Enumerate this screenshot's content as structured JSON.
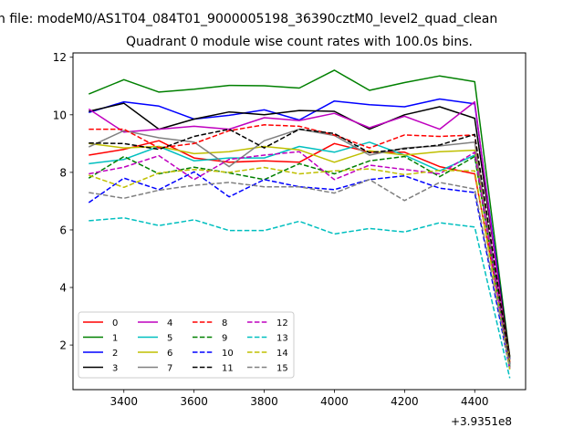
{
  "chart_data": {
    "type": "line",
    "suptitle": "n file: modeM0/AS1T04_084T01_9000005198_36390cztM0_level2_quad_clean",
    "title": "Quadrant 0 module wise count rates with 100.0s bins.",
    "xlabel": "",
    "ylabel": "",
    "x_offset_label": "+3.9351e8",
    "x": [
      3300,
      3400,
      3500,
      3600,
      3700,
      3800,
      3900,
      4000,
      4100,
      4200,
      4300,
      4400,
      4500
    ],
    "xlim": [
      3255,
      4545
    ],
    "ylim": [
      0.45,
      12.15
    ],
    "xticks": [
      3400,
      3600,
      3800,
      4000,
      4200,
      4400
    ],
    "yticks": [
      2,
      4,
      6,
      8,
      10,
      12
    ],
    "grid": false,
    "legend": {
      "placement": "lower-left",
      "columns": 4
    },
    "series": [
      {
        "name": "0",
        "color": "#ff0000",
        "dash": "solid",
        "values": [
          8.6,
          8.8,
          9.1,
          8.5,
          8.35,
          8.4,
          8.35,
          9.0,
          8.7,
          8.7,
          8.2,
          7.95,
          1.5
        ]
      },
      {
        "name": "1",
        "color": "#008000",
        "dash": "solid",
        "values": [
          10.72,
          11.22,
          10.79,
          10.89,
          11.02,
          11.01,
          10.93,
          11.55,
          10.85,
          11.12,
          11.35,
          11.15,
          1.55
        ]
      },
      {
        "name": "2",
        "color": "#0000ff",
        "dash": "solid",
        "values": [
          10.08,
          10.45,
          10.3,
          9.85,
          9.98,
          10.17,
          9.82,
          10.48,
          10.35,
          10.28,
          10.55,
          10.38,
          1.5
        ]
      },
      {
        "name": "3",
        "color": "#000000",
        "dash": "solid",
        "values": [
          10.12,
          10.4,
          9.5,
          9.85,
          10.1,
          10.0,
          10.15,
          10.12,
          9.5,
          10.0,
          10.28,
          9.88,
          1.6
        ]
      },
      {
        "name": "4",
        "color": "#bf00bf",
        "dash": "solid",
        "values": [
          10.2,
          9.4,
          9.5,
          9.6,
          9.5,
          9.9,
          9.8,
          10.05,
          9.55,
          9.95,
          9.5,
          10.45,
          1.2
        ]
      },
      {
        "name": "5",
        "color": "#00bfbf",
        "dash": "solid",
        "values": [
          8.3,
          8.45,
          8.9,
          8.4,
          8.5,
          8.5,
          8.9,
          8.7,
          9.05,
          8.6,
          8.05,
          8.6,
          1.3
        ]
      },
      {
        "name": "6",
        "color": "#bfbf00",
        "dash": "solid",
        "values": [
          9.0,
          8.85,
          8.9,
          8.65,
          8.72,
          8.9,
          8.78,
          8.35,
          8.75,
          8.6,
          8.72,
          8.77,
          1.45
        ]
      },
      {
        "name": "7",
        "color": "#808080",
        "dash": "solid",
        "values": [
          8.88,
          9.45,
          9.2,
          9.05,
          8.2,
          9.1,
          9.5,
          9.28,
          8.6,
          8.85,
          8.92,
          9.05,
          1.3
        ]
      },
      {
        "name": "8",
        "color": "#ff0000",
        "dash": "dashed",
        "values": [
          9.5,
          9.5,
          8.85,
          9.0,
          9.45,
          9.65,
          9.6,
          9.3,
          8.85,
          9.3,
          9.25,
          9.3,
          1.4
        ]
      },
      {
        "name": "9",
        "color": "#008000",
        "dash": "dashed",
        "values": [
          7.8,
          8.55,
          7.95,
          8.18,
          7.98,
          7.75,
          8.3,
          7.95,
          8.4,
          8.55,
          7.85,
          8.55,
          1.25
        ]
      },
      {
        "name": "10",
        "color": "#0000ff",
        "dash": "dashed",
        "values": [
          6.95,
          7.8,
          7.4,
          8.02,
          7.15,
          7.75,
          7.5,
          7.4,
          7.75,
          7.88,
          7.45,
          7.3,
          1.15
        ]
      },
      {
        "name": "11",
        "color": "#000000",
        "dash": "dashed",
        "values": [
          9.02,
          9.0,
          8.8,
          9.25,
          9.5,
          8.85,
          9.5,
          9.35,
          8.68,
          8.82,
          8.95,
          9.32,
          1.35
        ]
      },
      {
        "name": "12",
        "color": "#bf00bf",
        "dash": "dashed",
        "values": [
          7.95,
          8.18,
          8.58,
          7.75,
          8.45,
          8.6,
          8.72,
          7.75,
          8.25,
          8.1,
          7.95,
          8.7,
          1.15
        ]
      },
      {
        "name": "13",
        "color": "#00bfbf",
        "dash": "dashed",
        "values": [
          6.32,
          6.42,
          6.15,
          6.35,
          5.98,
          5.98,
          6.3,
          5.86,
          6.05,
          5.93,
          6.25,
          6.1,
          0.85
        ]
      },
      {
        "name": "14",
        "color": "#bfbf00",
        "dash": "dashed",
        "values": [
          7.9,
          7.48,
          7.98,
          8.1,
          8.0,
          8.17,
          7.95,
          8.05,
          8.12,
          7.92,
          8.07,
          8.05,
          1.15
        ]
      },
      {
        "name": "15",
        "color": "#808080",
        "dash": "dashed",
        "values": [
          7.3,
          7.1,
          7.38,
          7.55,
          7.65,
          7.5,
          7.5,
          7.28,
          7.75,
          7.02,
          7.65,
          7.42,
          1.3
        ]
      }
    ]
  }
}
